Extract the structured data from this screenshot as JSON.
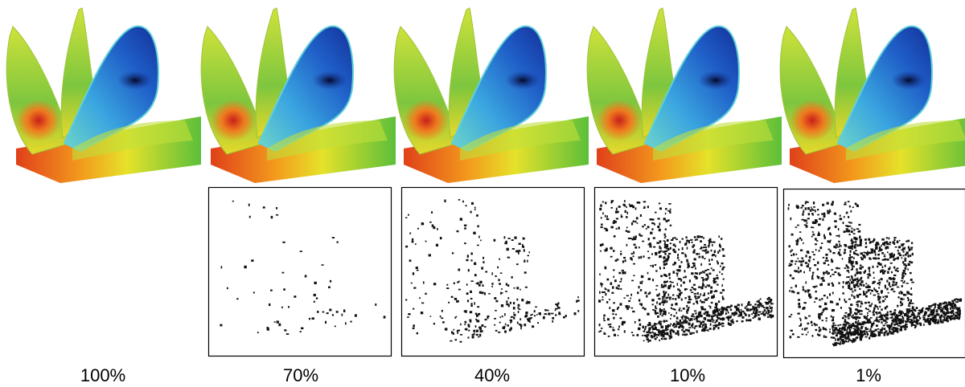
{
  "panels": [
    {
      "label": "100%"
    },
    {
      "label": "70%"
    },
    {
      "label": "40%"
    },
    {
      "label": "10%"
    },
    {
      "label": "1%"
    }
  ]
}
